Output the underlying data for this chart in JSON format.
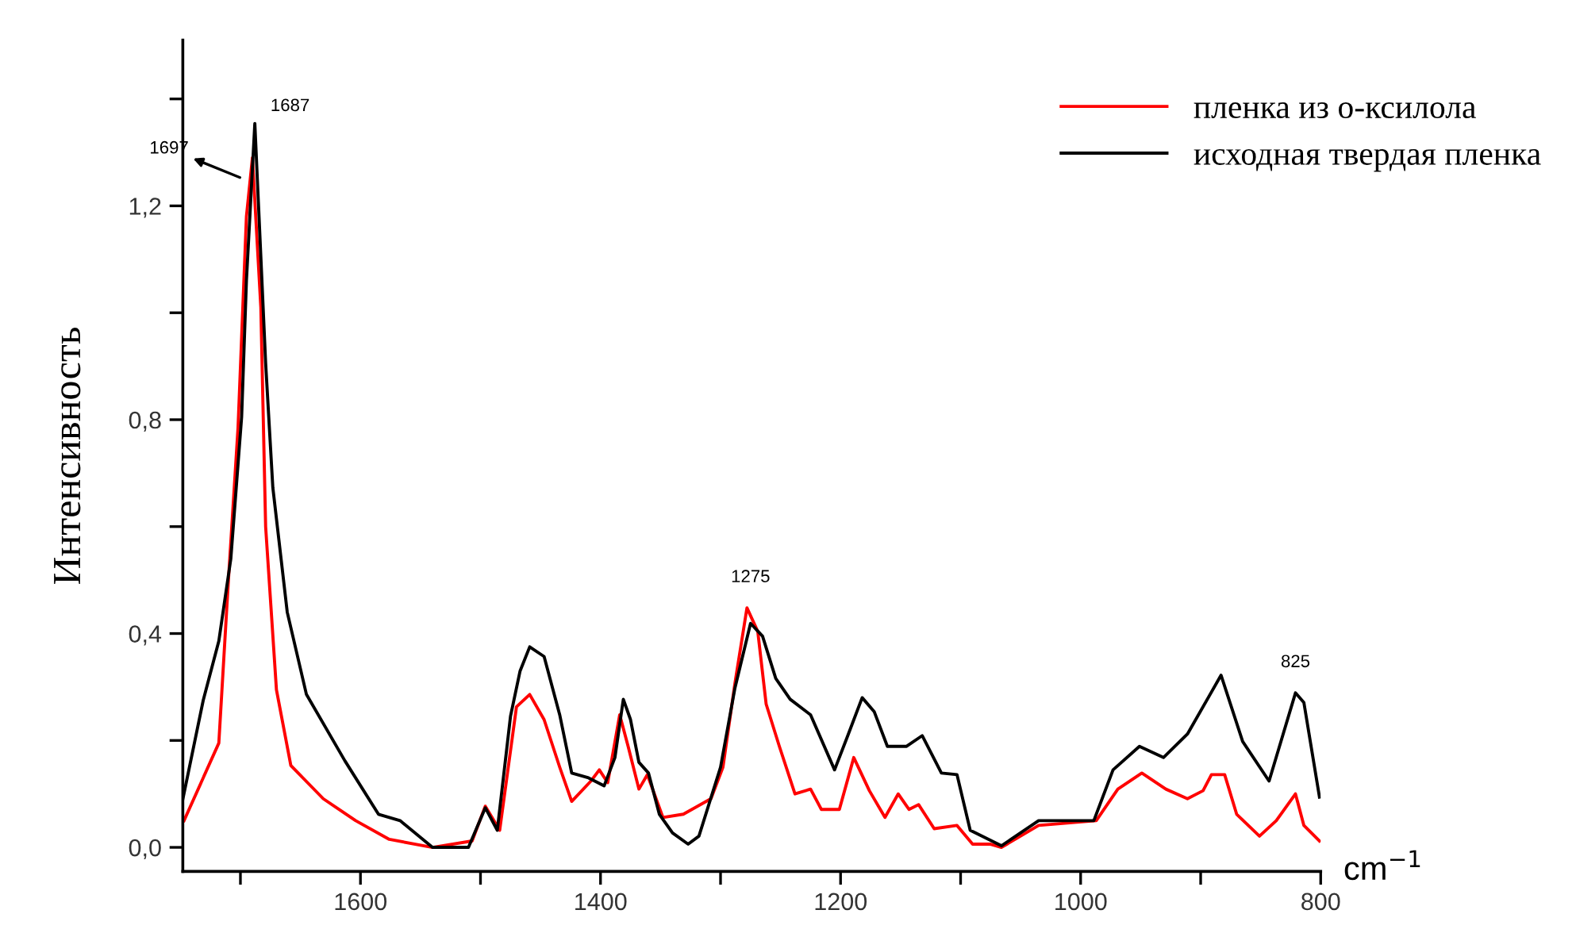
{
  "chart_data": {
    "type": "line",
    "xlabel": "cm$^{−1}$",
    "ylabel": "Интенсивность",
    "xlim": [
      1748,
      800
    ],
    "ylim": [
      -0.045,
      1.51
    ],
    "xticks": [
      {
        "value": 1700,
        "label": null
      },
      1600,
      {
        "value": 1500,
        "label": null
      },
      1400,
      {
        "value": 1300,
        "label": null
      },
      1200,
      {
        "value": 1100,
        "label": null
      },
      1000,
      {
        "value": 900,
        "label": null
      },
      800
    ],
    "yticks": [
      {
        "value": 0,
        "label": "0,0"
      },
      {
        "value": 0.2,
        "label": null
      },
      {
        "value": 0.4,
        "label": "0,4"
      },
      {
        "value": 0.6,
        "label": null
      },
      {
        "value": 0.8,
        "label": "0,8"
      },
      {
        "value": 1.0,
        "label": null
      },
      {
        "value": 1.2,
        "label": "1,2"
      },
      {
        "value": 1.4,
        "label": null
      }
    ],
    "grid": false,
    "legend": "top right",
    "line_style": "solid",
    "marker": "none",
    "series": [
      {
        "name": "пленка из о-ксилола",
        "color": "#ff0000",
        "x": [
          1747,
          1718,
          1710,
          1702,
          1695,
          1690,
          1683,
          1679,
          1670,
          1658,
          1631,
          1604,
          1576,
          1540,
          1507,
          1496,
          1484,
          1470,
          1459,
          1447,
          1434,
          1424,
          1408,
          1401,
          1394,
          1384,
          1377,
          1368,
          1361,
          1348,
          1331,
          1308,
          1298,
          1288,
          1278,
          1269,
          1262,
          1251,
          1238,
          1225,
          1216,
          1201,
          1189,
          1176,
          1163,
          1152,
          1143,
          1135,
          1122,
          1103,
          1090,
          1075,
          1066,
          1035,
          987,
          969,
          949,
          929,
          911,
          898,
          891,
          880,
          870,
          851,
          837,
          821,
          814,
          801
        ],
        "values": [
          0.05,
          0.195,
          0.5,
          0.785,
          1.18,
          1.29,
          1.01,
          0.6,
          0.295,
          0.153,
          0.091,
          0.05,
          0.015,
          0,
          0.012,
          0.077,
          0.032,
          0.263,
          0.286,
          0.239,
          0.15,
          0.086,
          0.124,
          0.145,
          0.121,
          0.248,
          0.189,
          0.109,
          0.136,
          0.056,
          0.062,
          0.091,
          0.15,
          0.307,
          0.448,
          0.404,
          0.268,
          0.189,
          0.1,
          0.109,
          0.071,
          0.071,
          0.168,
          0.106,
          0.056,
          0.1,
          0.071,
          0.08,
          0.035,
          0.041,
          0.006,
          0.006,
          0,
          0.041,
          0.05,
          0.109,
          0.139,
          0.109,
          0.091,
          0.106,
          0.136,
          0.136,
          0.062,
          0.021,
          0.05,
          0.1,
          0.041,
          0.012
        ]
      },
      {
        "name": "исходная твердая пленка",
        "color": "#000000",
        "x": [
          1748,
          1731,
          1718,
          1708,
          1699,
          1695,
          1688,
          1679,
          1673,
          1661,
          1645,
          1613,
          1585,
          1567,
          1540,
          1510,
          1496,
          1486,
          1475,
          1467,
          1459,
          1447,
          1434,
          1424,
          1410,
          1397,
          1388,
          1381,
          1375,
          1368,
          1360,
          1351,
          1340,
          1327,
          1318,
          1300,
          1288,
          1275,
          1265,
          1254,
          1242,
          1225,
          1205,
          1194,
          1182,
          1172,
          1161,
          1145,
          1132,
          1116,
          1103,
          1092,
          1066,
          1035,
          989,
          973,
          951,
          931,
          911,
          883,
          865,
          843,
          821,
          814,
          801
        ],
        "values": [
          0.09,
          0.275,
          0.386,
          0.54,
          0.805,
          1.06,
          1.354,
          0.906,
          0.673,
          0.44,
          0.286,
          0.162,
          0.062,
          0.05,
          0,
          0,
          0.074,
          0.032,
          0.245,
          0.33,
          0.375,
          0.357,
          0.248,
          0.139,
          0.13,
          0.115,
          0.168,
          0.277,
          0.239,
          0.159,
          0.139,
          0.062,
          0.027,
          0.006,
          0.021,
          0.15,
          0.298,
          0.419,
          0.395,
          0.316,
          0.277,
          0.248,
          0.145,
          0.209,
          0.28,
          0.254,
          0.189,
          0.189,
          0.209,
          0.139,
          0.136,
          0.032,
          0.003,
          0.05,
          0.05,
          0.145,
          0.189,
          0.168,
          0.212,
          0.322,
          0.198,
          0.124,
          0.289,
          0.271,
          0.094
        ]
      }
    ],
    "annotations": [
      {
        "text": "1697",
        "x": 1697,
        "y": 1.25
      },
      {
        "text": "1687",
        "x": 1688,
        "y": 1.354
      },
      {
        "text": "1275",
        "x": 1275,
        "y": 0.448
      },
      {
        "text": "825",
        "x": 821,
        "y": 0.289
      }
    ]
  }
}
